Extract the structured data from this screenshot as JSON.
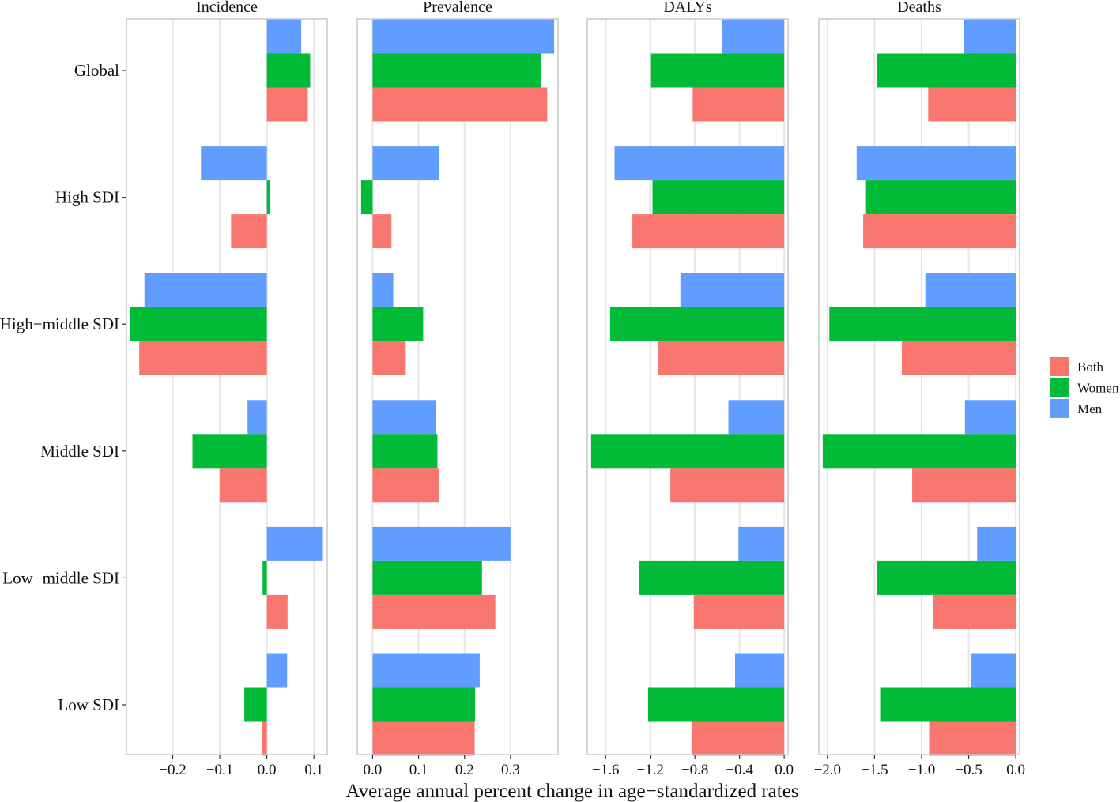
{
  "chart_data": {
    "type": "bar",
    "orientation": "horizontal",
    "layout": "faceted",
    "xlabel": "Average annual percent change in age−standardized rates",
    "categories": [
      "Global",
      "High SDI",
      "High−middle SDI",
      "Middle SDI",
      "Low−middle SDI",
      "Low SDI"
    ],
    "legend": {
      "position": "right",
      "entries": [
        {
          "name": "Both",
          "color": "#F8766D"
        },
        {
          "name": "Women",
          "color": "#00BA38"
        },
        {
          "name": "Men",
          "color": "#619CFF"
        }
      ]
    },
    "grid": true,
    "facets": [
      {
        "title": "Incidence",
        "xlim": [
          -0.29,
          0.12
        ],
        "ticks": [
          -0.2,
          -0.1,
          0.0,
          0.1
        ],
        "tick_labels": [
          "−0.2",
          "−0.1",
          "0.0",
          "0.1"
        ],
        "series": [
          {
            "name": "Both",
            "values": [
              0.087,
              -0.076,
              -0.271,
              -0.1,
              0.044,
              -0.01
            ]
          },
          {
            "name": "Women",
            "values": [
              0.092,
              0.006,
              -0.29,
              -0.158,
              -0.009,
              -0.048
            ]
          },
          {
            "name": "Men",
            "values": [
              0.073,
              -0.14,
              -0.26,
              -0.041,
              0.119,
              0.043
            ]
          }
        ]
      },
      {
        "title": "Prevalence",
        "xlim": [
          -0.025,
          0.395
        ],
        "ticks": [
          0.0,
          0.1,
          0.2,
          0.3
        ],
        "tick_labels": [
          "0.0",
          "0.1",
          "0.2",
          "0.3"
        ],
        "series": [
          {
            "name": "Both",
            "values": [
              0.38,
              0.041,
              0.072,
              0.144,
              0.267,
              0.222
            ]
          },
          {
            "name": "Women",
            "values": [
              0.367,
              -0.025,
              0.11,
              0.141,
              0.238,
              0.223
            ]
          },
          {
            "name": "Men",
            "values": [
              0.395,
              0.144,
              0.045,
              0.138,
              0.3,
              0.233
            ]
          }
        ]
      },
      {
        "title": "DALYs",
        "xlim": [
          -1.73,
          0.0
        ],
        "ticks": [
          -1.6,
          -1.2,
          -0.8,
          -0.4,
          0.0
        ],
        "tick_labels": [
          "−1.6",
          "−1.2",
          "−0.8",
          "−0.4",
          "0.0"
        ],
        "series": [
          {
            "name": "Both",
            "values": [
              -0.82,
              -1.36,
              -1.13,
              -1.02,
              -0.81,
              -0.83
            ]
          },
          {
            "name": "Women",
            "values": [
              -1.2,
              -1.18,
              -1.56,
              -1.73,
              -1.3,
              -1.22
            ]
          },
          {
            "name": "Men",
            "values": [
              -0.56,
              -1.52,
              -0.93,
              -0.5,
              -0.41,
              -0.44
            ]
          }
        ]
      },
      {
        "title": "Deaths",
        "xlim": [
          -2.05,
          0.0
        ],
        "ticks": [
          -2.0,
          -1.5,
          -1.0,
          -0.5,
          0.0
        ],
        "tick_labels": [
          "−2.0",
          "−1.5",
          "−1.0",
          "−0.5",
          "0.0"
        ],
        "series": [
          {
            "name": "Both",
            "values": [
              -0.93,
              -1.62,
              -1.21,
              -1.1,
              -0.88,
              -0.92
            ]
          },
          {
            "name": "Women",
            "values": [
              -1.47,
              -1.59,
              -1.98,
              -2.05,
              -1.47,
              -1.44
            ]
          },
          {
            "name": "Men",
            "values": [
              -0.55,
              -1.69,
              -0.96,
              -0.54,
              -0.41,
              -0.48
            ]
          }
        ]
      }
    ]
  }
}
